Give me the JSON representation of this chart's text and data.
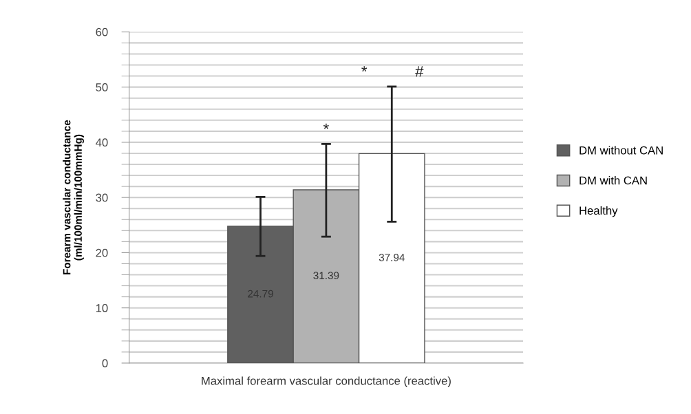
{
  "chart_data": {
    "type": "bar",
    "ylabel": "Forearm vascular conductance\n(ml/100ml/min/100mmHg)",
    "categories": [
      "Maximal forearm vascular conductance (reactive)"
    ],
    "series": [
      {
        "name": "DM without CAN",
        "color": "#606060",
        "values": [
          24.79
        ],
        "errors": [
          [
            19.4,
            30.1
          ]
        ]
      },
      {
        "name": "DM with CAN",
        "color": "#b2b2b2",
        "values": [
          31.39
        ],
        "errors": [
          [
            22.9,
            39.7
          ]
        ]
      },
      {
        "name": "Healthy",
        "color": "#ffffff",
        "values": [
          37.94
        ],
        "errors": [
          [
            25.6,
            50.1
          ]
        ]
      }
    ],
    "ylim": [
      0,
      60
    ],
    "yticks": [
      0,
      {
        "value": 2,
        "label": null
      },
      {
        "value": 4,
        "label": null
      },
      {
        "value": 6,
        "label": null
      },
      {
        "value": 8,
        "label": null
      },
      10,
      {
        "value": 12,
        "label": null
      },
      {
        "value": 14,
        "label": null
      },
      {
        "value": 16,
        "label": null
      },
      {
        "value": 18,
        "label": null
      },
      20,
      {
        "value": 22,
        "label": null
      },
      {
        "value": 24,
        "label": null
      },
      {
        "value": 26,
        "label": null
      },
      {
        "value": 28,
        "label": null
      },
      30,
      {
        "value": 32,
        "label": null
      },
      {
        "value": 34,
        "label": null
      },
      {
        "value": 36,
        "label": null
      },
      {
        "value": 38,
        "label": null
      },
      40,
      {
        "value": 42,
        "label": null
      },
      {
        "value": 44,
        "label": null
      },
      {
        "value": 46,
        "label": null
      },
      {
        "value": 48,
        "label": null
      },
      50,
      {
        "value": 52,
        "label": null
      },
      {
        "value": 54,
        "label": null
      },
      {
        "value": 56,
        "label": null
      },
      {
        "value": 58,
        "label": null
      },
      60
    ],
    "grid": "y",
    "legend": "right",
    "data_labels": true,
    "annotations": [
      "*",
      "*",
      "#"
    ]
  }
}
